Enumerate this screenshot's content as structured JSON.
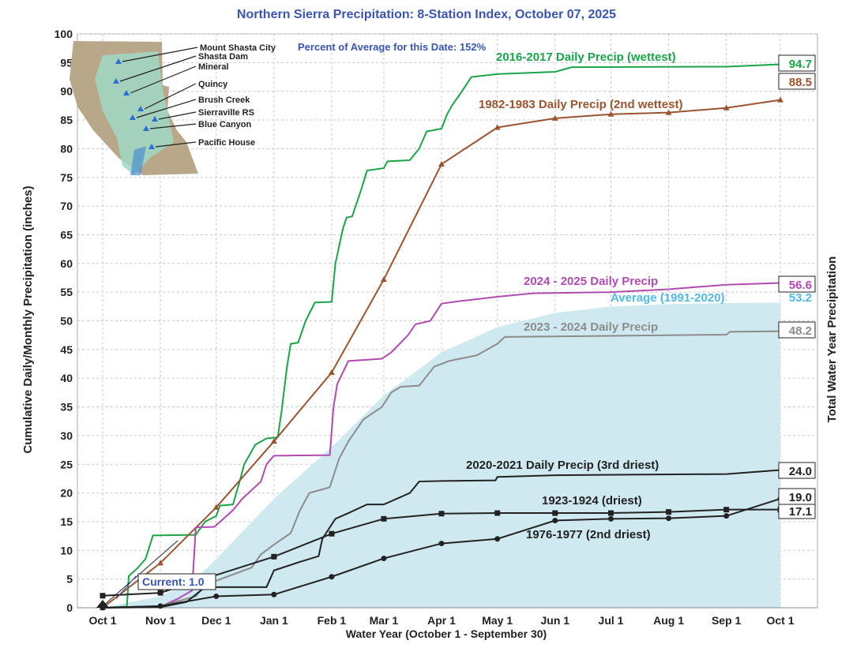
{
  "chart_data": {
    "type": "line",
    "title": "Northern Sierra Precipitation: 8-Station Index, October 07, 2025",
    "subtitle": "Percent of Average for this Date: 152%",
    "xlabel": "Water Year (October 1 - September 30)",
    "ylabel": "Cumulative Daily/Monthly Precipitation (inches)",
    "ylabel_right": "Total Water Year Precipitation",
    "ylim": [
      0,
      100
    ],
    "yticks": [
      0,
      5,
      10,
      15,
      20,
      25,
      30,
      35,
      40,
      45,
      50,
      55,
      60,
      65,
      70,
      75,
      80,
      85,
      90,
      95,
      100
    ],
    "xticks": [
      "Oct 1",
      "Nov 1",
      "Dec 1",
      "Jan 1",
      "Feb 1",
      "Mar 1",
      "Apr 1",
      "May 1",
      "Jun 1",
      "Jul 1",
      "Aug 1",
      "Sep 1",
      "Oct 1"
    ],
    "grid": true,
    "average": {
      "name": "Average (1991-2020)",
      "color": "#cfe9f1",
      "label_color": "#4fb9e3",
      "total": "53.2",
      "points": [
        [
          "10-01",
          0
        ],
        [
          "11-01",
          2
        ],
        [
          "11-20",
          5
        ],
        [
          "12-01",
          8.5
        ],
        [
          "01-01",
          19
        ],
        [
          "02-01",
          28
        ],
        [
          "03-01",
          37
        ],
        [
          "04-01",
          44.5
        ],
        [
          "05-01",
          48.9
        ],
        [
          "06-01",
          51.4
        ],
        [
          "07-01",
          52.5
        ],
        [
          "08-01",
          52.9
        ],
        [
          "09-01",
          53.1
        ],
        [
          "09-30",
          53.2
        ]
      ]
    },
    "series": [
      {
        "name": "2016-2017 Daily Precip (wettest)",
        "color": "#1aa54a",
        "total": "94.7",
        "marker": "none",
        "points": [
          [
            "10-01",
            0
          ],
          [
            "10-14",
            0.2
          ],
          [
            "10-15",
            5.5
          ],
          [
            "10-20",
            7
          ],
          [
            "10-24",
            8.5
          ],
          [
            "10-28",
            12.6
          ],
          [
            "11-20",
            12.7
          ],
          [
            "11-25",
            15
          ],
          [
            "12-01",
            16
          ],
          [
            "12-03",
            17.8
          ],
          [
            "12-10",
            18
          ],
          [
            "12-14",
            22.5
          ],
          [
            "12-16",
            25
          ],
          [
            "12-22",
            28.4
          ],
          [
            "12-28",
            29.5
          ],
          [
            "01-03",
            29.7
          ],
          [
            "01-05",
            34
          ],
          [
            "01-08",
            42
          ],
          [
            "01-10",
            46
          ],
          [
            "01-14",
            46.2
          ],
          [
            "01-18",
            50
          ],
          [
            "01-23",
            53.2
          ],
          [
            "02-01",
            53.3
          ],
          [
            "02-03",
            60
          ],
          [
            "02-07",
            66
          ],
          [
            "02-09",
            68
          ],
          [
            "02-12",
            68.2
          ],
          [
            "02-17",
            73
          ],
          [
            "02-20",
            76.2
          ],
          [
            "03-01",
            76.6
          ],
          [
            "03-03",
            77.8
          ],
          [
            "03-15",
            78
          ],
          [
            "03-20",
            80
          ],
          [
            "03-24",
            83
          ],
          [
            "04-01",
            83.5
          ],
          [
            "04-04",
            86
          ],
          [
            "04-07",
            87.7
          ],
          [
            "04-13",
            90.5
          ],
          [
            "04-17",
            92.5
          ],
          [
            "05-01",
            93
          ],
          [
            "06-01",
            93.4
          ],
          [
            "06-10",
            94.2
          ],
          [
            "09-01",
            94.3
          ],
          [
            "09-30",
            94.7
          ]
        ]
      },
      {
        "name": "1982-1983 Daily Precip (2nd wettest)",
        "color": "#9a5430",
        "total": "88.5",
        "marker": "triangle",
        "points": [
          [
            "10-01",
            0
          ],
          [
            "11-01",
            7.8
          ],
          [
            "12-01",
            17.5
          ],
          [
            "01-01",
            29
          ],
          [
            "02-01",
            41
          ],
          [
            "03-01",
            57.2
          ],
          [
            "04-01",
            77.3
          ],
          [
            "05-01",
            83.7
          ],
          [
            "06-01",
            85.3
          ],
          [
            "07-01",
            86
          ],
          [
            "08-01",
            86.3
          ],
          [
            "09-01",
            87.1
          ],
          [
            "09-30",
            88.5
          ]
        ]
      },
      {
        "name": "2024 - 2025 Daily Precip",
        "color": "#b04bb0",
        "total": "56.6",
        "marker": "none",
        "points": [
          [
            "10-01",
            0
          ],
          [
            "11-01",
            0.2
          ],
          [
            "11-10",
            1.5
          ],
          [
            "11-18",
            3
          ],
          [
            "11-20",
            14
          ],
          [
            "11-30",
            14.1
          ],
          [
            "12-10",
            17
          ],
          [
            "12-15",
            19
          ],
          [
            "12-25",
            22
          ],
          [
            "12-28",
            25
          ],
          [
            "01-01",
            26.5
          ],
          [
            "01-31",
            26.6
          ],
          [
            "02-02",
            35
          ],
          [
            "02-04",
            39
          ],
          [
            "02-10",
            43
          ],
          [
            "02-28",
            43.4
          ],
          [
            "03-05",
            44.5
          ],
          [
            "03-14",
            47.5
          ],
          [
            "03-18",
            49.4
          ],
          [
            "03-26",
            50
          ],
          [
            "04-01",
            53
          ],
          [
            "04-10",
            53.4
          ],
          [
            "05-01",
            54.2
          ],
          [
            "05-20",
            54.8
          ],
          [
            "07-01",
            55
          ],
          [
            "08-01",
            55.5
          ],
          [
            "09-01",
            56.3
          ],
          [
            "09-30",
            56.6
          ]
        ]
      },
      {
        "name": "2023 - 2024 Daily Precip",
        "color": "#8c8c8c",
        "total": "48.2",
        "marker": "none",
        "points": [
          [
            "10-01",
            0
          ],
          [
            "11-01",
            0.3
          ],
          [
            "11-20",
            2
          ],
          [
            "11-25",
            4
          ],
          [
            "12-20",
            7
          ],
          [
            "12-25",
            9.3
          ],
          [
            "01-01",
            11
          ],
          [
            "01-10",
            13
          ],
          [
            "01-15",
            17
          ],
          [
            "01-20",
            20
          ],
          [
            "01-31",
            21
          ],
          [
            "02-05",
            26
          ],
          [
            "02-10",
            29
          ],
          [
            "02-18",
            32.8
          ],
          [
            "02-28",
            35
          ],
          [
            "03-05",
            37.5
          ],
          [
            "03-10",
            38.5
          ],
          [
            "03-20",
            38.7
          ],
          [
            "03-28",
            42
          ],
          [
            "04-05",
            43
          ],
          [
            "04-20",
            44
          ],
          [
            "05-01",
            46
          ],
          [
            "05-05",
            47.2
          ],
          [
            "09-01",
            47.6
          ],
          [
            "09-03",
            48.1
          ],
          [
            "09-30",
            48.2
          ]
        ]
      },
      {
        "name": "2020-2021 Daily Precip (3rd driest)",
        "color": "#222222",
        "total": "24.0",
        "marker": "none",
        "points": [
          [
            "10-01",
            0
          ],
          [
            "11-01",
            0.1
          ],
          [
            "11-15",
            1
          ],
          [
            "11-25",
            3.6
          ],
          [
            "12-28",
            3.6
          ],
          [
            "01-01",
            6.5
          ],
          [
            "01-15",
            8
          ],
          [
            "01-25",
            9
          ],
          [
            "01-27",
            12
          ],
          [
            "02-03",
            15.5
          ],
          [
            "02-10",
            16.5
          ],
          [
            "02-20",
            18
          ],
          [
            "03-01",
            18
          ],
          [
            "03-15",
            20
          ],
          [
            "03-20",
            22
          ],
          [
            "04-01",
            22.1
          ],
          [
            "04-30",
            22.2
          ],
          [
            "05-01",
            22.8
          ],
          [
            "06-01",
            23.1
          ],
          [
            "09-01",
            23.3
          ],
          [
            "09-30",
            24.0
          ]
        ]
      },
      {
        "name": "1923-1924 (driest)",
        "color": "#222222",
        "total": "17.1",
        "marker": "square",
        "points": [
          [
            "10-01",
            2.1
          ],
          [
            "11-01",
            2.6
          ],
          [
            "01-01",
            8.9
          ],
          [
            "02-01",
            12.9
          ],
          [
            "03-01",
            15.5
          ],
          [
            "04-01",
            16.4
          ],
          [
            "05-01",
            16.5
          ],
          [
            "06-01",
            16.5
          ],
          [
            "07-01",
            16.5
          ],
          [
            "08-01",
            16.7
          ],
          [
            "09-01",
            17.1
          ],
          [
            "09-30",
            17.1
          ]
        ]
      },
      {
        "name": "1976-1977 (2nd driest)",
        "color": "#222222",
        "total": "19.0",
        "marker": "circle",
        "points": [
          [
            "10-01",
            0
          ],
          [
            "11-01",
            0.3
          ],
          [
            "12-01",
            2.0
          ],
          [
            "01-01",
            2.3
          ],
          [
            "02-01",
            5.4
          ],
          [
            "03-01",
            8.6
          ],
          [
            "04-01",
            11.2
          ],
          [
            "05-01",
            12
          ],
          [
            "06-01",
            15.2
          ],
          [
            "07-01",
            15.5
          ],
          [
            "08-01",
            15.6
          ],
          [
            "09-01",
            16.0
          ],
          [
            "09-30",
            19.0
          ]
        ]
      }
    ],
    "current": {
      "label": "Current: 1.0",
      "value": 1.0,
      "date": "10-07",
      "color": "#3a55b0"
    }
  },
  "map": {
    "stations": [
      "Mount Shasta City",
      "Shasta Dam",
      "Mineral",
      "Quincy",
      "Brush Creek",
      "Sierraville RS",
      "Blue Canyon",
      "Pacific House"
    ]
  },
  "colors": {
    "title": "#3a55b0",
    "axis": "#222222",
    "grid": "#c8c8c8"
  }
}
